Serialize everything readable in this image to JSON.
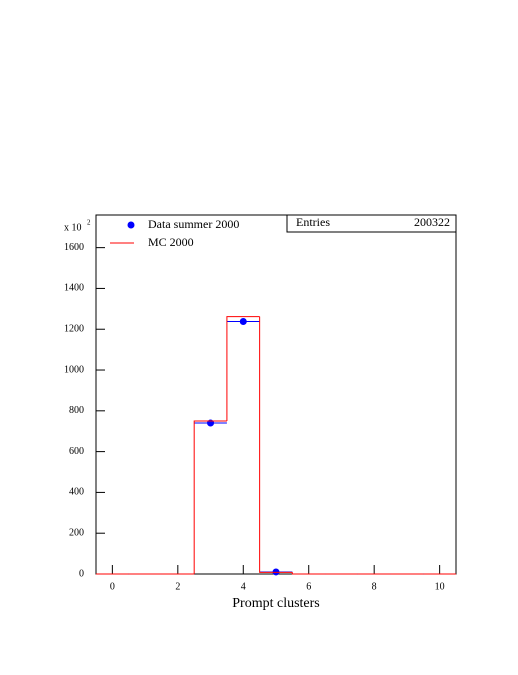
{
  "chart_data": {
    "type": "histogram",
    "x_label": "Prompt clusters",
    "y_multiplier": {
      "base": "x 10",
      "exponent": "2"
    },
    "bins": [
      -0.5,
      0.5,
      1.5,
      2.5,
      3.5,
      4.5,
      5.5,
      6.5,
      7.5,
      8.5,
      9.5,
      10.5
    ],
    "series": [
      {
        "name": "Data summer 2000",
        "color": "#0000ff",
        "style": "markers",
        "values": [
          0,
          0,
          0,
          740,
          1238,
          10,
          0,
          0,
          0,
          0,
          0
        ]
      },
      {
        "name": "MC 2000",
        "color": "#ff0000",
        "style": "step",
        "values": [
          0,
          0,
          0,
          750,
          1262,
          8,
          0,
          0,
          0,
          0,
          0
        ]
      }
    ],
    "stats": {
      "label": "Entries",
      "value": "200322"
    },
    "xlim": [
      -0.5,
      10.5
    ],
    "xticks": [
      0,
      2,
      4,
      6,
      8,
      10
    ],
    "ylim": [
      0,
      1760
    ],
    "yticks": [
      0,
      200,
      400,
      600,
      800,
      1000,
      1200,
      1400,
      1600
    ],
    "legend": "top-left"
  }
}
